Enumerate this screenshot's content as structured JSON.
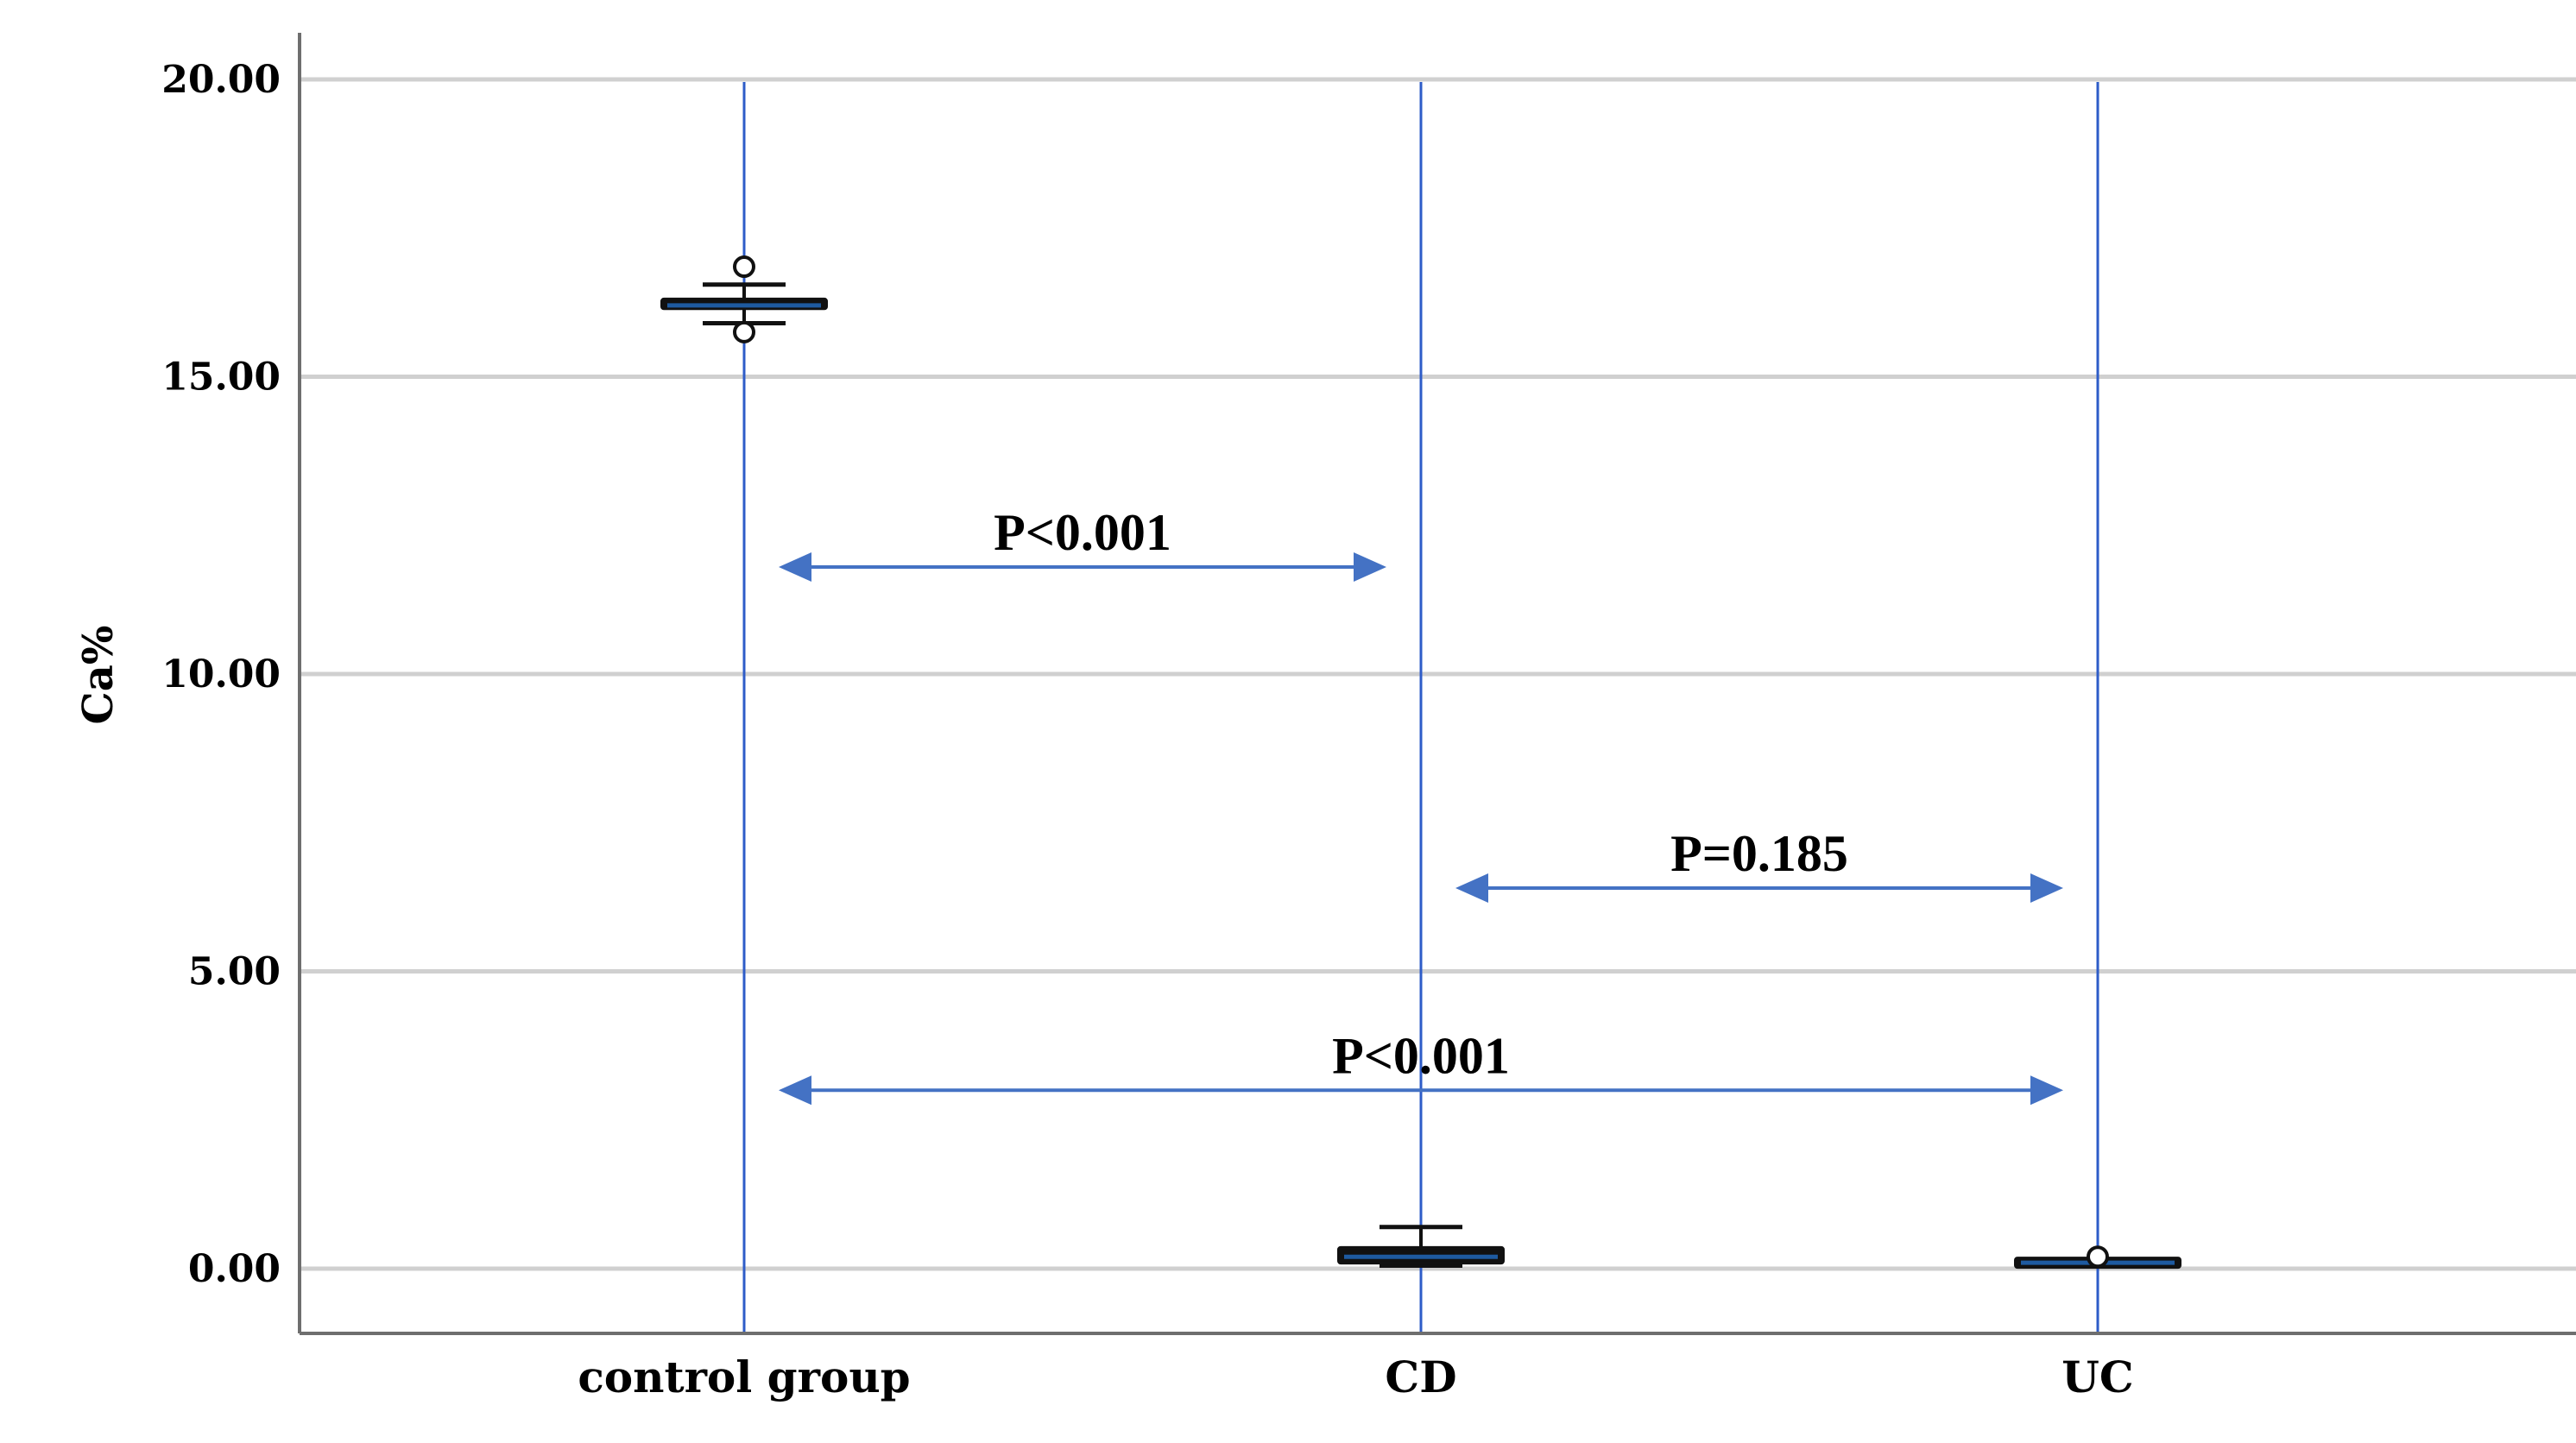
{
  "chart_data": {
    "type": "boxplot",
    "ylabel": "Ca%",
    "xlabel": "",
    "ylim": [
      -2.2,
      21.5
    ],
    "yticks": [
      0,
      5,
      10,
      15,
      20
    ],
    "ytick_labels": [
      "0.00",
      "5.00",
      "10.00",
      "15.00",
      "20.00"
    ],
    "grid": true,
    "categories": [
      "control group",
      "CD",
      "UC"
    ],
    "boxes": [
      {
        "category": "control group",
        "whisker_low": 15.9,
        "q1": 16.15,
        "median": 16.2,
        "q3": 16.3,
        "whisker_high": 16.55,
        "outliers": [
          16.85,
          15.75
        ]
      },
      {
        "category": "CD",
        "whisker_low": 0.05,
        "q1": 0.1,
        "median": 0.2,
        "q3": 0.35,
        "whisker_high": 0.7,
        "outliers": []
      },
      {
        "category": "UC",
        "whisker_low": 0.05,
        "q1": 0.07,
        "median": 0.1,
        "q3": 0.13,
        "whisker_high": 0.15,
        "outliers": [
          0.2
        ]
      }
    ],
    "comparisons": [
      {
        "from": "control group",
        "to": "CD",
        "y": 11.8,
        "label": "P<0.001"
      },
      {
        "from": "CD",
        "to": "UC",
        "y": 6.4,
        "label": "P=0.185"
      },
      {
        "from": "control group",
        "to": "UC",
        "y": 3.0,
        "label": "P<0.001"
      }
    ],
    "colors": {
      "guide": "#2e5cc8",
      "arrow": "#4472c4",
      "grid": "#d0d0d0",
      "axis": "#6e6e6e",
      "box": "#111111",
      "median": "#1e5aa0"
    }
  }
}
